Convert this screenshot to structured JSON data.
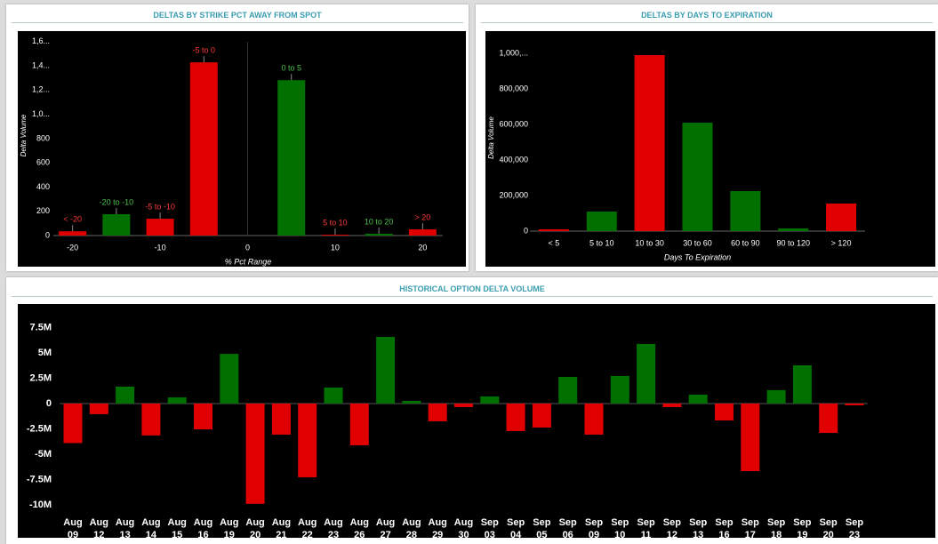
{
  "chart_data": [
    {
      "type": "bar",
      "title": "DELTAS BY STRIKE PCT AWAY FROM SPOT",
      "x_label": "% Pct Range",
      "y_label": "Delta Volume",
      "x": [
        -20,
        -15,
        -10,
        -5,
        5,
        10,
        15,
        20
      ],
      "labels": [
        "< -20",
        "-20 to -10",
        "-5 to -10",
        "-5 to 0",
        "0 to 5",
        "5 to 10",
        "10 to 20",
        "> 20"
      ],
      "values": [
        35,
        176,
        139,
        1429,
        1282,
        7,
        15,
        51
      ],
      "colors": [
        "#e00000",
        "#007000",
        "#e00000",
        "#e00000",
        "#007000",
        "#e00000",
        "#007000",
        "#e00000"
      ],
      "xlim": [
        -22.2,
        22.3
      ],
      "xticks": [
        -20,
        -10,
        0,
        10,
        20
      ],
      "ylim": [
        0,
        1650
      ],
      "yticks": [
        0,
        200,
        400,
        600,
        800,
        {
          "value": 1000,
          "label": "1,0..."
        },
        {
          "value": 1200,
          "label": "1,2..."
        },
        {
          "value": 1400,
          "label": "1,4..."
        },
        {
          "value": 1600,
          "label": "1,6..."
        }
      ]
    },
    {
      "type": "bar",
      "title": "DELTAS BY DAYS TO EXPIRATION",
      "x_label": "Days To Expiration",
      "y_label": "Delta Volume",
      "categories": [
        "< 5",
        "5 to 10",
        "10 to 30",
        "30 to 60",
        "60 to 90",
        "90 to 120",
        "> 120"
      ],
      "values": [
        10000,
        110000,
        990000,
        610000,
        225000,
        15000,
        155000
      ],
      "colors": [
        "#e00000",
        "#007000",
        "#e00000",
        "#007000",
        "#007000",
        "#007000",
        "#e00000"
      ],
      "ylim": [
        0,
        1050000
      ],
      "yticks": [
        0,
        {
          "value": 200000,
          "label": "200,000"
        },
        {
          "value": 400000,
          "label": "400,000"
        },
        {
          "value": 600000,
          "label": "600,000"
        },
        {
          "value": 800000,
          "label": "800,000"
        },
        {
          "value": 1000000,
          "label": "1,000,..."
        }
      ]
    },
    {
      "type": "bar",
      "title": "HISTORICAL OPTION DELTA VOLUME",
      "categories": [
        "Aug 09",
        "Aug 12",
        "Aug 13",
        "Aug 14",
        "Aug 15",
        "Aug 16",
        "Aug 19",
        "Aug 20",
        "Aug 21",
        "Aug 22",
        "Aug 23",
        "Aug 26",
        "Aug 27",
        "Aug 28",
        "Aug 29",
        "Aug 30",
        "Sep 03",
        "Sep 04",
        "Sep 05",
        "Sep 06",
        "Sep 09",
        "Sep 10",
        "Sep 11",
        "Sep 12",
        "Sep 13",
        "Sep 16",
        "Sep 17",
        "Sep 18",
        "Sep 19",
        "Sep 20",
        "Sep 23"
      ],
      "values": [
        -3900000,
        -1050000,
        1670000,
        -3150000,
        600000,
        -2550000,
        4900000,
        -9900000,
        -3070000,
        -7280000,
        1580000,
        -4120000,
        6580000,
        260000,
        -1750000,
        -350000,
        700000,
        -2720000,
        -2370000,
        2630000,
        -3070000,
        2720000,
        5880000,
        -350000,
        880000,
        -1670000,
        -6670000,
        1320000,
        3770000,
        -2900000,
        -180000
      ],
      "positive_color": "#007000",
      "negative_color": "#e00000",
      "ylim": [
        -10600000,
        8700000
      ],
      "yticks": [
        {
          "value": -10000000,
          "label": "-10M"
        },
        {
          "value": -7500000,
          "label": "-7.5M"
        },
        {
          "value": -5000000,
          "label": "-5M"
        },
        {
          "value": -2500000,
          "label": "-2.5M"
        },
        0,
        {
          "value": 2500000,
          "label": "2.5M"
        },
        {
          "value": 5000000,
          "label": "5M"
        },
        {
          "value": 7500000,
          "label": "7.5M"
        }
      ]
    }
  ]
}
